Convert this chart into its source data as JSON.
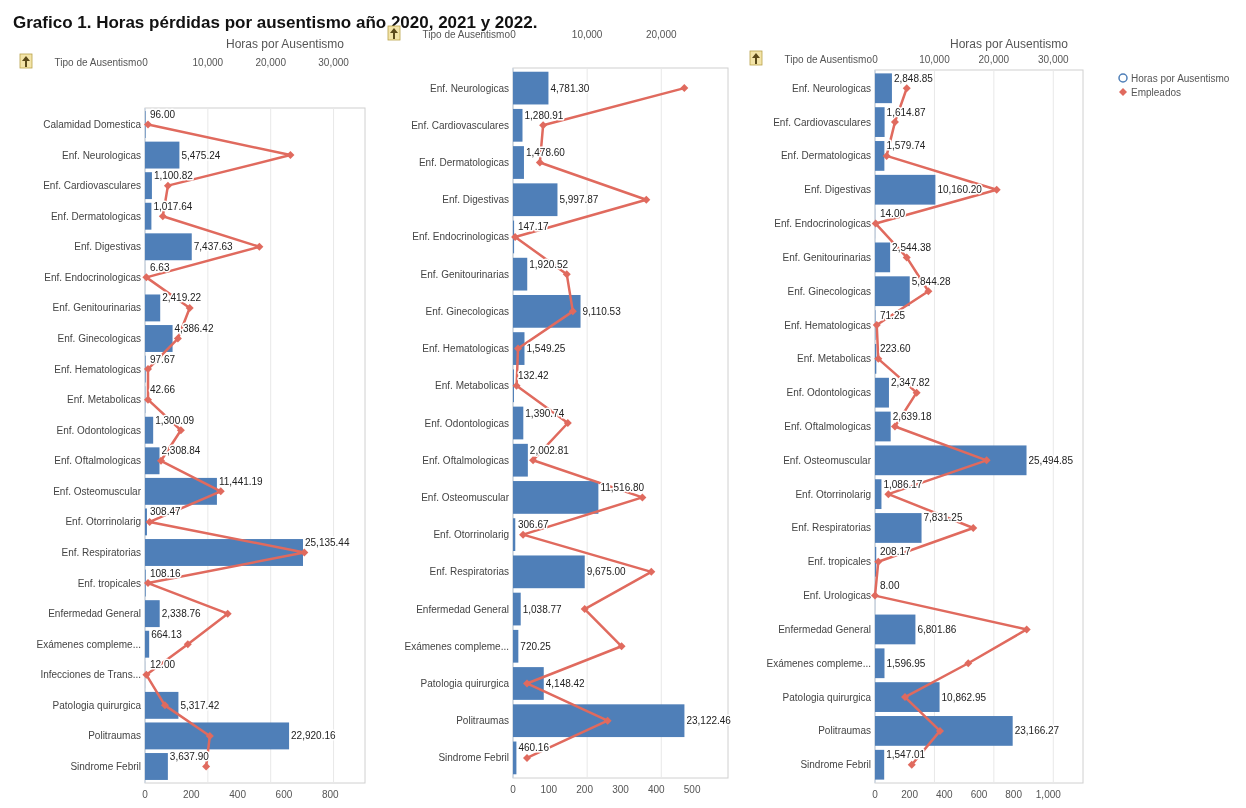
{
  "chart_data": [
    {
      "type": "bar",
      "orientation": "horizontal",
      "title": "Grafico 1. Horas pérdidas por ausentismo año 2020, 2021 y 2022.",
      "x2label": "Horas por Ausentismo",
      "ylabel": "Tipo de Ausentismo",
      "categories": [
        "Calamidad Domestica",
        "Enf. Neurologicas",
        "Enf. Cardiovasculares",
        "Enf. Dermatologicas",
        "Enf. Digestivas",
        "Enf. Endocrinologicas",
        "Enf. Genitourinarias",
        "Enf. Ginecologicas",
        "Enf. Hematologicas",
        "Enf. Metabolicas",
        "Enf. Odontologicas",
        "Enf. Oftalmologicas",
        "Enf. Osteomuscular",
        "Enf. Otorrinolarig",
        "Enf. Respiratorias",
        "Enf. tropicales",
        "Enfermedad General",
        "Exámenes compleme...",
        "Infecciones de Trans...",
        "Patologia quirurgica",
        "Politraumas",
        "Sindrome Febril"
      ],
      "series": [
        {
          "axis": "x2",
          "color": "#4f7fb8",
          "values": [
            96,
            5475.24,
            1100.82,
            1017.64,
            7437.63,
            6.63,
            2419.22,
            4386.42,
            97.67,
            42.66,
            1300.09,
            2308.84,
            11441.19,
            308.47,
            25135.44,
            108.16,
            2338.76,
            664.13,
            12,
            5317.42,
            22920.16,
            3637.9
          ],
          "value_labels": [
            "96.00",
            "5,475.24",
            "1,100.82",
            "1,017.64",
            "7,437.63",
            "6.63",
            "2,419.22",
            "4,386.42",
            "97.67",
            "42.66",
            "1,300.09",
            "2,308.84",
            "11,441.19",
            "308.47",
            "25,135.44",
            "108.16",
            "2,338.76",
            "664.13",
            "12.00",
            "5,317.42",
            "22,920.16",
            "3,637.90"
          ]
        },
        {
          "type": "line",
          "marker": "diamond",
          "color": "#e06a5e",
          "values": [
            13,
            628,
            99,
            77,
            494,
            6,
            193,
            142,
            13,
            13,
            155,
            69,
            327,
            20,
            688,
            13,
            357,
            185,
            6,
            86,
            280,
            264
          ]
        }
      ],
      "xlim": [
        0,
        950
      ],
      "xticks": [
        0,
        200,
        400,
        600,
        800
      ],
      "x2lim": [
        0,
        35000
      ],
      "x2ticks": [
        {
          "value": 0,
          "label": "0"
        },
        {
          "value": 10000,
          "label": "10,000"
        },
        {
          "value": 20000,
          "label": "20,000"
        },
        {
          "value": 30000,
          "label": "30,000"
        }
      ],
      "grid": "x"
    },
    {
      "type": "bar",
      "orientation": "horizontal",
      "ylabel": "Tipo de Ausentismo",
      "categories": [
        "Enf. Neurologicas",
        "Enf. Cardiovasculares",
        "Enf. Dermatologicas",
        "Enf. Digestivas",
        "Enf. Endocrinologicas",
        "Enf. Genitourinarias",
        "Enf. Ginecologicas",
        "Enf. Hematologicas",
        "Enf. Metabolicas",
        "Enf. Odontologicas",
        "Enf. Oftalmologicas",
        "Enf. Osteomuscular",
        "Enf. Otorrinolarig",
        "Enf. Respiratorias",
        "Enfermedad General",
        "Exámenes compleme...",
        "Patologia quirurgica",
        "Politraumas",
        "Sindrome Febril"
      ],
      "series": [
        {
          "axis": "x2",
          "color": "#4f7fb8",
          "values": [
            4781.3,
            1280.91,
            1478.6,
            5997.87,
            147.17,
            1920.52,
            9110.53,
            1549.25,
            132.42,
            1390.74,
            2002.81,
            11516.8,
            306.67,
            9675,
            1038.77,
            720.25,
            4148.42,
            23122.46,
            460.16
          ],
          "value_labels": [
            "4,781.30",
            "1,280.91",
            "1,478.60",
            "5,997.87",
            "147.17",
            "1,920.52",
            "9,110.53",
            "1,549.25",
            "132.42",
            "1,390.74",
            "2,002.81",
            "11,516.80",
            "306.67",
            "9,675.00",
            "1,038.77",
            "720.25",
            "4,148.42",
            "23,122.46",
            "460.16"
          ]
        },
        {
          "type": "line",
          "marker": "diamond",
          "color": "#e06a5e",
          "values": [
            478,
            84,
            75,
            372,
            6,
            150,
            167,
            14,
            10,
            153,
            56,
            361,
            28,
            386,
            200,
            303,
            39,
            264,
            39
          ]
        }
      ],
      "xlim": [
        0,
        600
      ],
      "xticks": [
        0,
        100,
        200,
        300,
        400,
        500
      ],
      "x2lim": [
        0,
        29000
      ],
      "x2ticks": [
        {
          "value": 0,
          "label": "0"
        },
        {
          "value": 10000,
          "label": "10,000"
        },
        {
          "value": 20000,
          "label": "20,000"
        }
      ],
      "grid": "x"
    },
    {
      "type": "bar",
      "orientation": "horizontal",
      "x2label": "Horas por Ausentismo",
      "ylabel": "Tipo de Ausentismo",
      "legend": "top right",
      "categories": [
        "Enf. Neurologicas",
        "Enf. Cardiovasculares",
        "Enf. Dermatologicas",
        "Enf. Digestivas",
        "Enf. Endocrinologicas",
        "Enf. Genitourinarias",
        "Enf. Ginecologicas",
        "Enf. Hematologicas",
        "Enf. Metabolicas",
        "Enf. Odontologicas",
        "Enf. Oftalmologicas",
        "Enf. Osteomuscular",
        "Enf. Otorrinolarig",
        "Enf. Respiratorias",
        "Enf. tropicales",
        "Enf. Urologicas",
        "Enfermedad General",
        "Exámenes compleme...",
        "Patologia quirurgica",
        "Politraumas",
        "Sindrome Febril"
      ],
      "series": [
        {
          "axis": "x2",
          "name": "Horas por Ausentismo",
          "color": "#4f7fb8",
          "values": [
            2848.85,
            1614.87,
            1579.74,
            10160.2,
            14,
            2544.38,
            5844.28,
            71.25,
            223.6,
            2347.82,
            2639.18,
            25494.85,
            1086.17,
            7831.25,
            208.17,
            8,
            6801.86,
            1596.95,
            10862.95,
            23166.27,
            1547.01
          ],
          "value_labels": [
            "2,848.85",
            "1,614.87",
            "1,579.74",
            "10,160.20",
            "14.00",
            "2,544.38",
            "5,844.28",
            "71.25",
            "223.60",
            "2,347.82",
            "2,639.18",
            "25,494.85",
            "1,086.17",
            "7,831.25",
            "208.17",
            "8.00",
            "6,801.86",
            "1,596.95",
            "10,862.95",
            "23,166.27",
            "1,547.01"
          ]
        },
        {
          "type": "line",
          "name": "Empleados",
          "marker": "diamond",
          "color": "#e06a5e",
          "values": [
            183,
            115,
            67,
            702,
            4,
            183,
            308,
            10,
            19,
            240,
            115,
            644,
            77,
            567,
            19,
            0,
            875,
            538,
            173,
            375,
            212
          ]
        }
      ],
      "xlim": [
        0,
        1200
      ],
      "xticks": [
        0,
        200,
        400,
        600,
        800,
        {
          "value": 1000,
          "label": "1,000"
        }
      ],
      "x2lim": [
        0,
        35000
      ],
      "x2ticks": [
        {
          "value": 0,
          "label": "0"
        },
        {
          "value": 10000,
          "label": "10,000"
        },
        {
          "value": 20000,
          "label": "20,000"
        },
        {
          "value": 30000,
          "label": "30,000"
        }
      ],
      "grid": "x"
    }
  ]
}
